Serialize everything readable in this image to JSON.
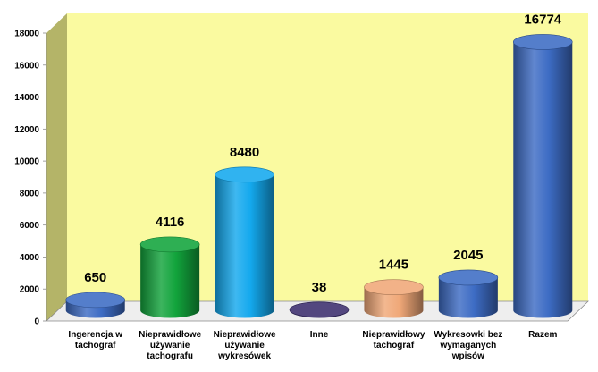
{
  "chart_data": {
    "type": "bar",
    "style": "3d-cylinder",
    "categories": [
      [
        "Ingerencja w",
        "tachograf"
      ],
      [
        "Nieprawidłowe",
        "używanie",
        "tachografu"
      ],
      [
        "Nieprawidłowe",
        "używanie",
        "wykresówek"
      ],
      [
        "Inne"
      ],
      [
        "Nieprawidłowy",
        "tachograf"
      ],
      [
        "Wykresowki bez",
        "wymaganych",
        "wpisów"
      ],
      [
        "Razem"
      ]
    ],
    "values": [
      650,
      4116,
      8480,
      38,
      1445,
      2045,
      16774
    ],
    "value_labels": [
      "650",
      "4116",
      "8480",
      "38",
      "1445",
      "2045",
      "16774"
    ],
    "colors": [
      "#3d6cc4",
      "#12a43c",
      "#14a9ee",
      "#3b2e6e",
      "#f0a878",
      "#3d6cc4",
      "#3d6cc4"
    ],
    "yticks": [
      "0",
      "2000",
      "4000",
      "6000",
      "8000",
      "10000",
      "12000",
      "14000",
      "16000",
      "18000"
    ],
    "ylim": [
      0,
      18000
    ],
    "grid": false,
    "wall_color": "#fafaa0",
    "side_wall_color": "#b4b468",
    "floor_color": "#eeeeee"
  }
}
